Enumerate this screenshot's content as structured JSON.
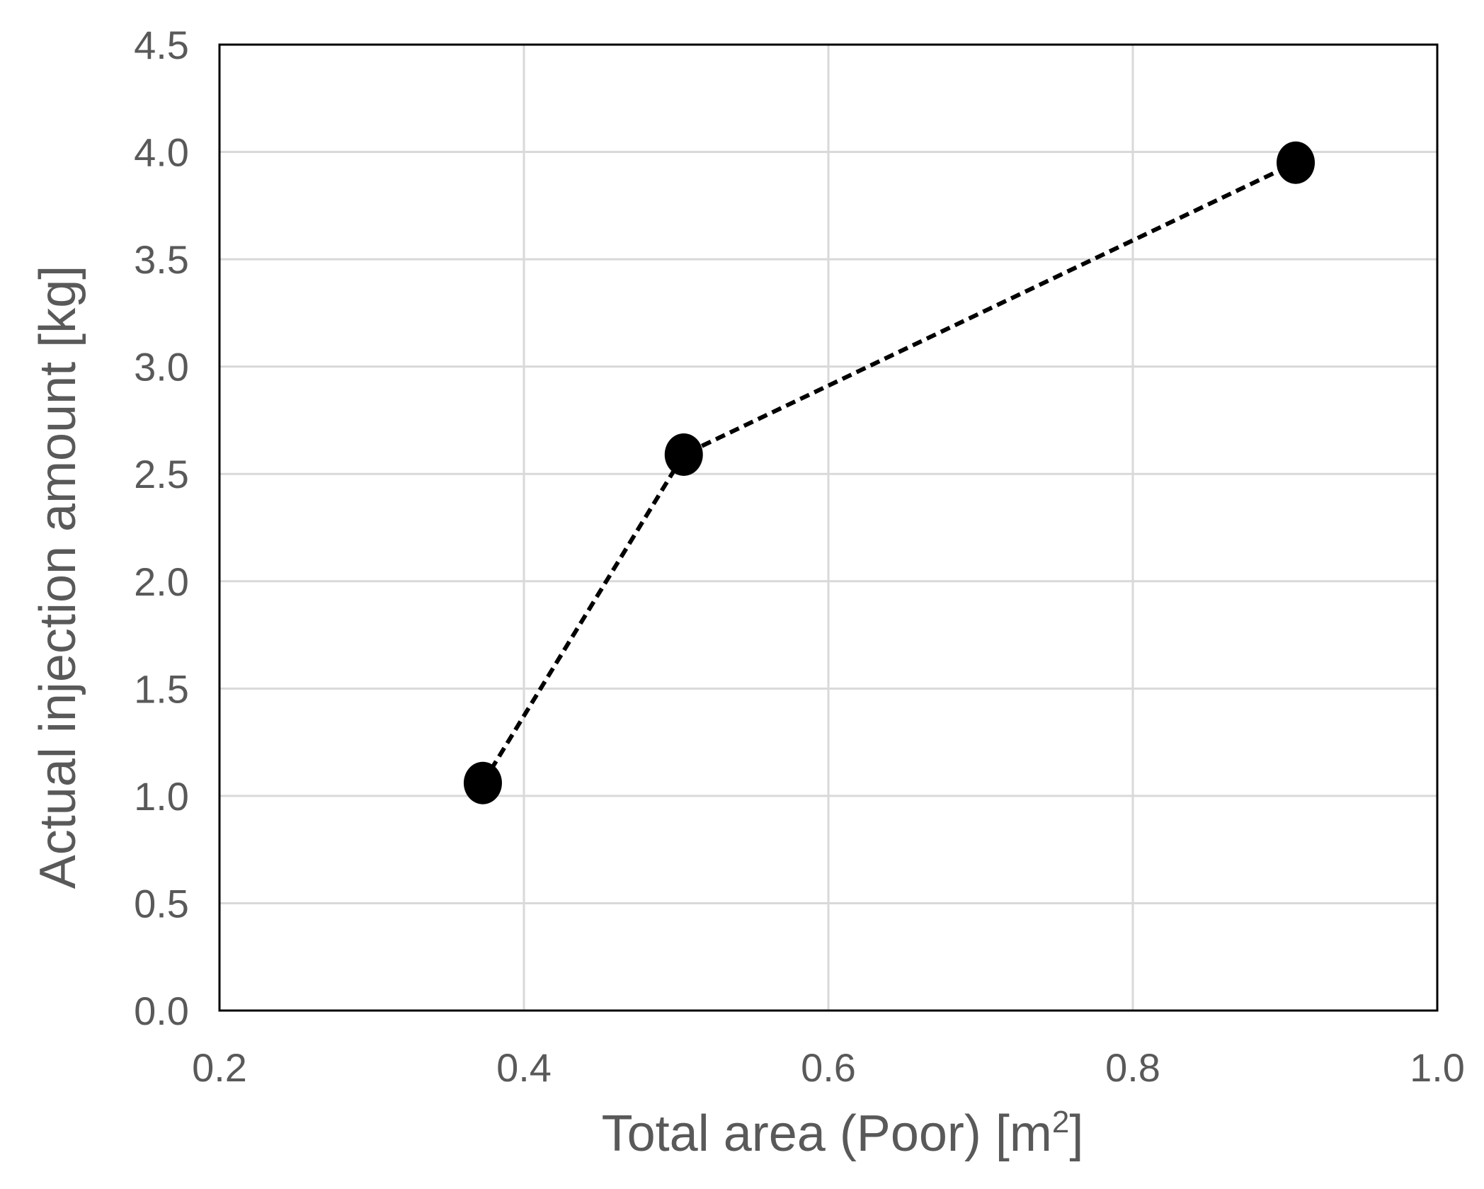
{
  "chart_data": {
    "type": "scatter",
    "title": "",
    "xlabel": "Total area (Poor) [m",
    "xlabel_sup": "2",
    "xlabel_end": "]",
    "ylabel": "Actual injection amount [kg]",
    "xlim": [
      0.2,
      1.0
    ],
    "ylim": [
      0.0,
      4.5
    ],
    "xticks": [
      "0.2",
      "0.4",
      "0.6",
      "0.8",
      "1.0"
    ],
    "yticks": [
      "0.0",
      "0.5",
      "1.0",
      "1.5",
      "2.0",
      "2.5",
      "3.0",
      "3.5",
      "4.0",
      "4.5"
    ],
    "grid": true,
    "line_style": "dashed",
    "marker": "circle",
    "colors": {
      "marker": "#000000",
      "line": "#000000",
      "grid": "#d9d9d9",
      "frame": "#000000",
      "text": "#595959"
    },
    "series": [
      {
        "x": [
          0.373,
          0.505,
          0.907
        ],
        "y": [
          1.06,
          2.59,
          3.95
        ]
      }
    ]
  }
}
